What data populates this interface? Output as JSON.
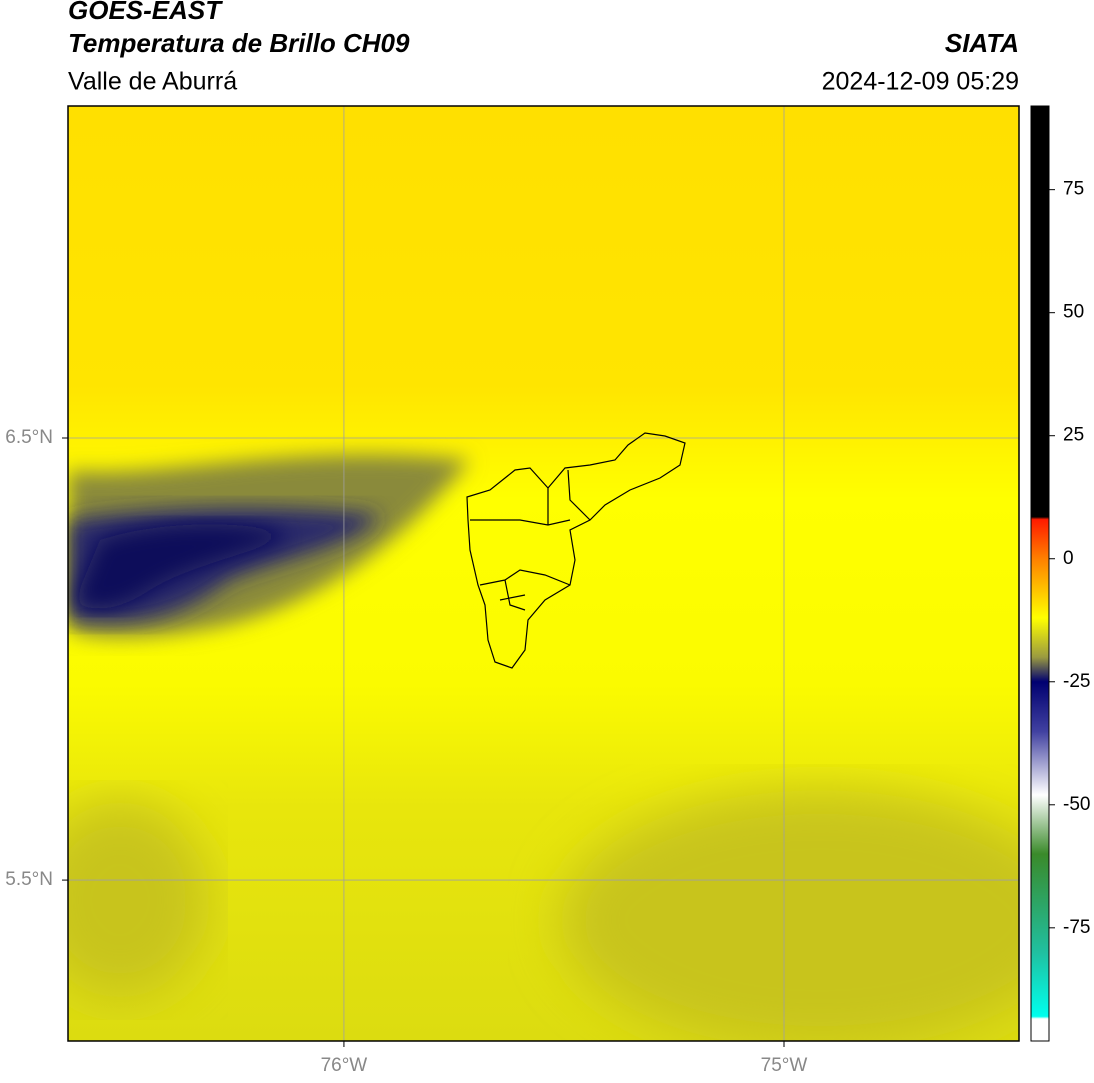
{
  "header": {
    "title": "GOES-EAST",
    "subtitle": "Temperatura de Brillo CH09",
    "region": "Valle de Aburrá",
    "source": "SIATA",
    "datetime": "2024-12-09 05:29"
  },
  "map": {
    "xlim": [
      -76.627,
      -74.466
    ],
    "ylim": [
      5.136,
      7.251
    ],
    "xticks": [
      {
        "value": -76,
        "label": "76°W"
      },
      {
        "value": -75,
        "label": "75°W"
      }
    ],
    "yticks": [
      {
        "value": 5.5,
        "label": "5.5°N"
      },
      {
        "value": 6.5,
        "label": "6.5°N"
      }
    ],
    "grid": true,
    "grid_color": "#a0a0a0"
  },
  "colorbar": {
    "lim": [
      -98,
      92
    ],
    "ticks": [
      -75,
      -50,
      -25,
      0,
      25,
      50,
      75
    ],
    "stops": [
      {
        "value": 92,
        "color": "#000000"
      },
      {
        "value": 8.5,
        "color": "#000000"
      },
      {
        "value": 8,
        "color": "#ff1a00"
      },
      {
        "value": 0,
        "color": "#ff8000"
      },
      {
        "value": -12,
        "color": "#ffff00"
      },
      {
        "value": -20,
        "color": "#9a9a40"
      },
      {
        "value": -25,
        "color": "#000070"
      },
      {
        "value": -35,
        "color": "#4040a0"
      },
      {
        "value": -48,
        "color": "#ffffff"
      },
      {
        "value": -60,
        "color": "#3a8a2a"
      },
      {
        "value": -80,
        "color": "#20c0a0"
      },
      {
        "value": -93,
        "color": "#00ffee"
      },
      {
        "value": -93.5,
        "color": "#ffffff"
      },
      {
        "value": -98,
        "color": "#ffffff"
      }
    ]
  }
}
